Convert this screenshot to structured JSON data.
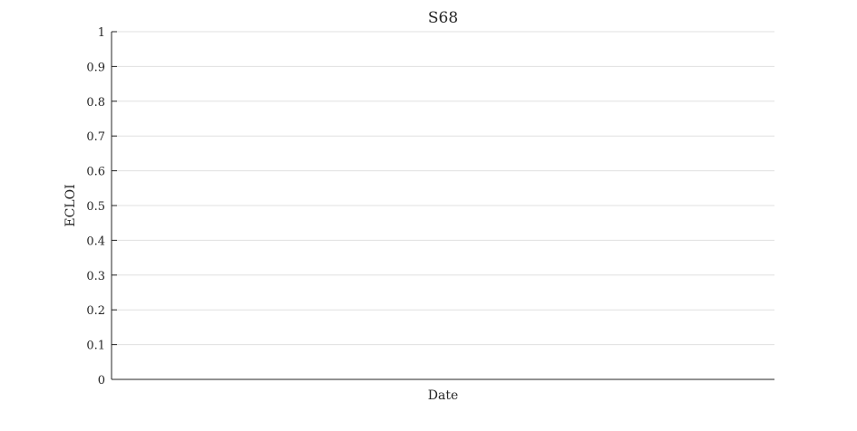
{
  "chart_data": {
    "type": "line",
    "title": "S68",
    "xlabel": "Date",
    "ylabel": "ECLOI",
    "ylim": [
      0,
      1
    ],
    "yticks": [
      0,
      0.1,
      0.2,
      0.3,
      0.4,
      0.5,
      0.6,
      0.7,
      0.8,
      0.9,
      1
    ],
    "ytick_labels": [
      "0",
      "0.1",
      "0.2",
      "0.3",
      "0.4",
      "0.5",
      "0.6",
      "0.7",
      "0.8",
      "0.9",
      "1"
    ],
    "grid": true,
    "series": []
  },
  "colors": {
    "axis": "#262626",
    "grid": "#e0e0e0",
    "text": "#262626"
  }
}
